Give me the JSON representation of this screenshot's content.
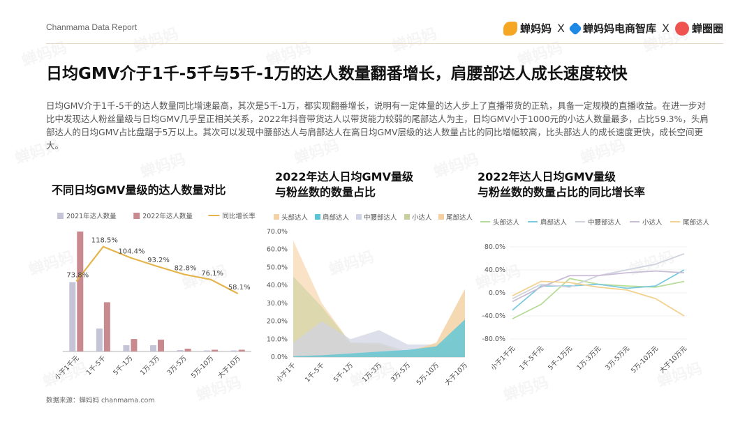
{
  "header": {
    "report_name": "Chanmama Data Report",
    "brands": [
      "蝉妈妈",
      "蝉妈妈电商智库",
      "蝉圈圈"
    ],
    "separator": "X"
  },
  "headline": "日均GMV介于1千-5千与5千-1万的达人数量翻番增长，肩腰部达人成长速度较快",
  "body_text": "日均GMV介于1千-5千的达人数量同比增速最高，其次是5千-1万，都实现翻番增长，说明有一定体量的达人步上了直播带货的正轨，具备一定规模的直播收益。在进一步对比中发现达人粉丝量级与日均GMV几乎呈正相关关系，2022年抖音带货达人以带货能力较弱的尾部达人为主，日均GMV小于1000元的小达人数量最多，占比59.3%，头肩部达人的日均GMV占比盘踞于5万以上。其次可以发现中腰部达人与肩部达人在高日均GMV层级的达人数量占比的同比增幅较高，比头部达人的成长速度更快，成长空间更大。",
  "source": "数据来源：蝉妈妈 chanmama.com",
  "watermark": "蝉妈妈",
  "colors": {
    "bar2021": "#c5c3d6",
    "bar2022": "#c98a8f",
    "growth_line": "#e5b54d",
    "head": "#f2d2a6",
    "shoulder": "#5bc5d8",
    "waist": "#cfd3e3",
    "small": "#c8d09c",
    "tail": "#f5cfa0",
    "s3_head": "#b6dc98",
    "s3_shoulder": "#7ac9dd",
    "s3_waist": "#cfd3dd",
    "s3_small": "#c9bcd6",
    "s3_tail": "#f3d18f"
  },
  "chart_data": [
    {
      "type": "bar",
      "title": "不同日均GMV量级的达人数量对比",
      "categories": [
        "小于1千元",
        "1千-5千",
        "5千-1万",
        "1万-3万",
        "3万-5万",
        "5万-10万",
        "大于10万"
      ],
      "series": [
        {
          "name": "2021年达人数量",
          "type": "bar",
          "values": [
            100,
            33,
            9,
            9,
            2,
            1.5,
            1.5
          ]
        },
        {
          "name": "2022年达人数量",
          "type": "bar",
          "values": [
            173,
            71,
            18,
            17,
            4,
            2.5,
            2.5
          ]
        },
        {
          "name": "同比增长率",
          "type": "line",
          "values": [
            73.8,
            118.5,
            104.4,
            93.2,
            82.8,
            76.1,
            58.1
          ],
          "labels": [
            "73.8%",
            "118.5%",
            "104.4%",
            "93.2%",
            "82.8%",
            "76.1%",
            "58.1%"
          ]
        }
      ],
      "legend": "top"
    },
    {
      "type": "area",
      "title": "2022年达人日均GMV量级\n与粉丝数的数量占比",
      "title_lines": [
        "2022年达人日均GMV量级",
        "与粉丝数的数量占比"
      ],
      "categories": [
        "小于1千",
        "1千-5千",
        "5千-1万",
        "1万-3万",
        "3万-5万",
        "5万-10万",
        "大于10万"
      ],
      "y_ticks": [
        "0.0%",
        "10.0%",
        "20.0%",
        "30.0%",
        "40.0%",
        "50.0%",
        "60.0%",
        "70.0%"
      ],
      "ylim": [
        0,
        70
      ],
      "series": [
        {
          "name": "头部达人",
          "values": [
            0.5,
            1,
            1.5,
            2,
            3,
            8,
            38
          ]
        },
        {
          "name": "肩部达人",
          "values": [
            0.5,
            1,
            2,
            3,
            4,
            6,
            21
          ]
        },
        {
          "name": "中腰部达人",
          "values": [
            8,
            20,
            10,
            15,
            7,
            7,
            10
          ]
        },
        {
          "name": "小达人",
          "values": [
            45,
            28,
            8,
            8,
            3,
            1,
            0.5
          ]
        },
        {
          "name": "尾部达人",
          "values": [
            65,
            30,
            8,
            7,
            2,
            1,
            0.5
          ]
        }
      ],
      "legend": "top"
    },
    {
      "type": "line",
      "title": "2022年达人日均GMV量级\n与粉丝数的数量占比的同比增长率",
      "title_lines": [
        "2022年达人日均GMV量级",
        "与粉丝数的数量占比的同比增长率"
      ],
      "categories": [
        "小于1千元",
        "1千-5千元",
        "5千-1万元",
        "1万-3万元",
        "3万-5万元",
        "5万-10万元",
        "大于10万元"
      ],
      "y_ticks": [
        "80.0%",
        "40.0%",
        "0.0%",
        "-40.0%",
        "-80.0%"
      ],
      "ylim": [
        -80,
        80
      ],
      "series": [
        {
          "name": "头部达人",
          "values": [
            -45,
            -20,
            25,
            15,
            12,
            10,
            20
          ]
        },
        {
          "name": "肩部达人",
          "values": [
            -30,
            12,
            12,
            15,
            8,
            12,
            40
          ]
        },
        {
          "name": "中腰部达人",
          "values": [
            -10,
            15,
            10,
            30,
            40,
            50,
            68
          ]
        },
        {
          "name": "小达人",
          "values": [
            -15,
            10,
            30,
            30,
            35,
            38,
            35
          ]
        },
        {
          "name": "尾部达人",
          "values": [
            -5,
            20,
            18,
            10,
            5,
            -10,
            -40
          ]
        }
      ],
      "legend": "top"
    }
  ]
}
